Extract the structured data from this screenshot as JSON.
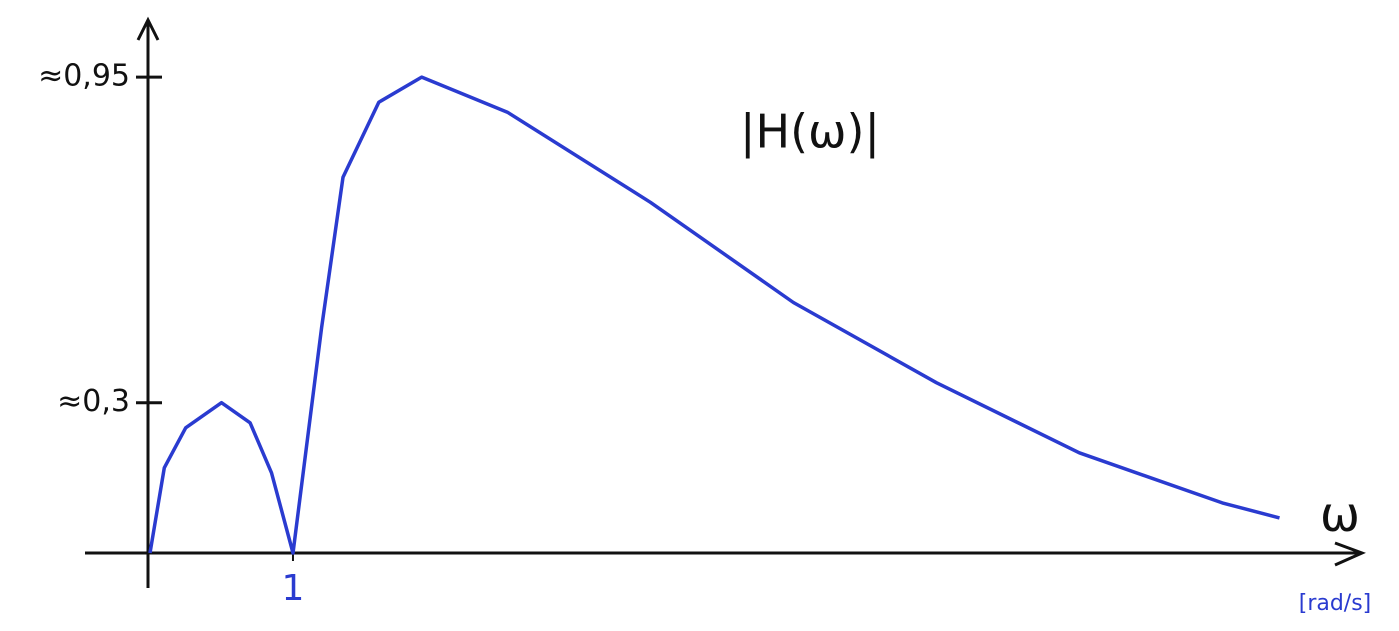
{
  "chart_data": {
    "type": "line",
    "title": "|H(ω)|",
    "xlabel": "ω",
    "xunit": "[rad/s]",
    "x": [
      0,
      0.1,
      0.25,
      0.5,
      0.7,
      0.85,
      1,
      1.2,
      1.35,
      1.6,
      1.9,
      2.5,
      3.5,
      4.5,
      5.5,
      6.5,
      7.5,
      7.9
    ],
    "values": [
      0,
      0.17,
      0.25,
      0.3,
      0.26,
      0.16,
      0,
      0.45,
      0.75,
      0.9,
      0.95,
      0.88,
      0.7,
      0.5,
      0.34,
      0.2,
      0.1,
      0.07
    ],
    "color": "#2a3bd0",
    "xlim": [
      0,
      8.4
    ],
    "ylim": [
      0,
      1.06
    ],
    "xticks": [
      1
    ],
    "yticks": [
      {
        "value": 0.3,
        "label": "≈0,3"
      },
      {
        "value": 0.95,
        "label": "≈0,95"
      }
    ]
  }
}
